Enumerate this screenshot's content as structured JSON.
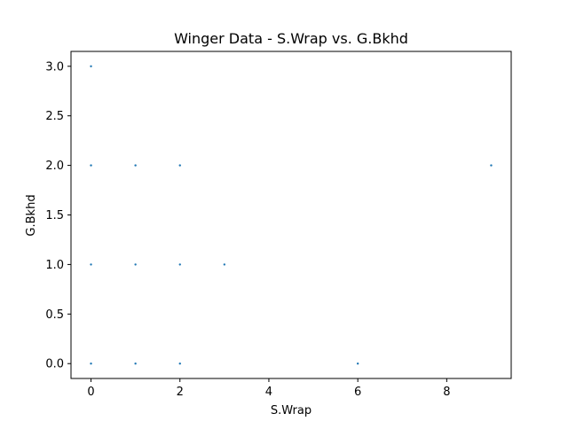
{
  "chart_data": {
    "type": "scatter",
    "title": "Winger Data - S.Wrap vs. G.Bkhd",
    "xlabel": "S.Wrap",
    "ylabel": "G.Bkhd",
    "xlim": [
      -0.45,
      9.45
    ],
    "ylim": [
      -0.15,
      3.15
    ],
    "xticks": [
      0,
      2,
      4,
      6,
      8
    ],
    "xtick_labels": [
      "0",
      "2",
      "4",
      "6",
      "8"
    ],
    "yticks": [
      0.0,
      0.5,
      1.0,
      1.5,
      2.0,
      2.5,
      3.0
    ],
    "ytick_labels": [
      "0.0",
      "0.5",
      "1.0",
      "1.5",
      "2.0",
      "2.5",
      "3.0"
    ],
    "grid": false,
    "legend": "none",
    "marker_color": "#1f77b4",
    "points": [
      {
        "x": 0,
        "y": 3
      },
      {
        "x": 0,
        "y": 2
      },
      {
        "x": 1,
        "y": 2
      },
      {
        "x": 2,
        "y": 2
      },
      {
        "x": 9,
        "y": 2
      },
      {
        "x": 0,
        "y": 1
      },
      {
        "x": 1,
        "y": 1
      },
      {
        "x": 2,
        "y": 1
      },
      {
        "x": 3,
        "y": 1
      },
      {
        "x": 0,
        "y": 0
      },
      {
        "x": 1,
        "y": 0
      },
      {
        "x": 2,
        "y": 0
      },
      {
        "x": 6,
        "y": 0
      }
    ]
  }
}
